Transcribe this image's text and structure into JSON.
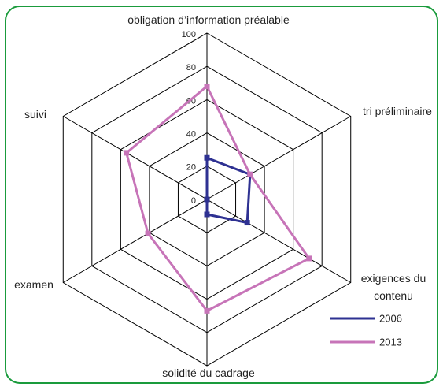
{
  "chart_data": {
    "type": "radar",
    "categories": [
      "obligation d’information préalable",
      "tri préliminaire",
      "exigences du contenu",
      "solidité du cadrage",
      "examen",
      "suivi"
    ],
    "series": [
      {
        "name": "2006",
        "color": "#2e3192",
        "values": [
          25,
          30,
          28,
          9,
          0,
          0
        ]
      },
      {
        "name": "2013",
        "color": "#c774b8",
        "values": [
          68,
          30,
          71,
          67,
          41,
          56
        ]
      }
    ],
    "rlim": [
      0,
      100
    ],
    "rticks": [
      0,
      20,
      40,
      60,
      80,
      100
    ],
    "legend": "lower right"
  }
}
